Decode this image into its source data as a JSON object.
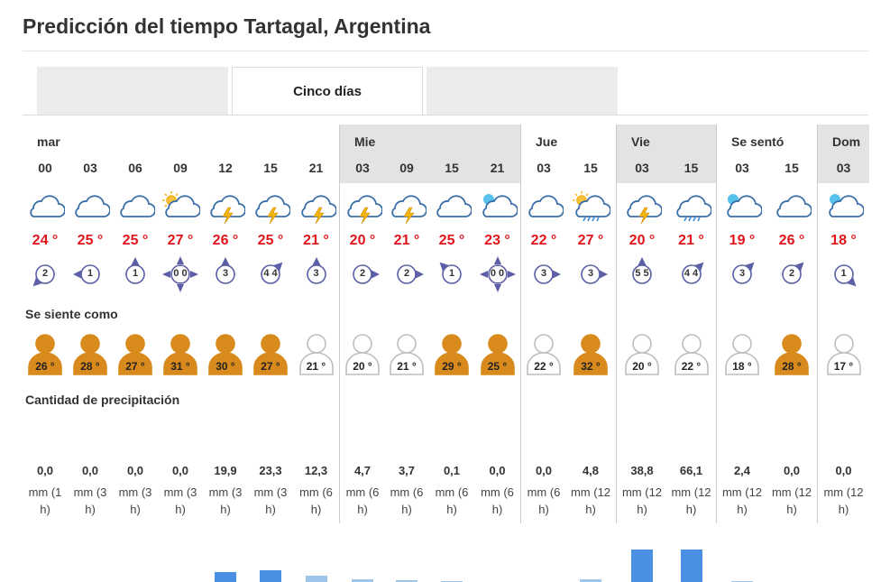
{
  "page": {
    "title": "Predicción del tiempo Tartagal, Argentina"
  },
  "tabs": [
    {
      "label": ""
    },
    {
      "label": "Cinco días"
    },
    {
      "label": ""
    }
  ],
  "sections": {
    "feels_like": "Se siente como",
    "precipitation": "Cantidad de precipitación"
  },
  "colors": {
    "temp": "#e0141b",
    "warm_person": "#d98a1c",
    "bar_heavy": "#4a90e2",
    "bar_light": "#9ec5ea",
    "header_shade": "#e3e3e3"
  },
  "forecast": [
    {
      "day": "mar",
      "hour": "00",
      "icon": "cloud-icon",
      "temp": "24 °",
      "wind": "2",
      "wind_dir": "sw",
      "feel": "26 °",
      "warm": true,
      "precip": 0.0,
      "precip_label": "0,0",
      "unit_l1": "mm (1",
      "unit_l2": "h)"
    },
    {
      "day": "",
      "hour": "03",
      "icon": "cloud-icon",
      "temp": "25 °",
      "wind": "1",
      "wind_dir": "w",
      "feel": "28 °",
      "warm": true,
      "precip": 0.0,
      "precip_label": "0,0",
      "unit_l1": "mm (3",
      "unit_l2": "h)"
    },
    {
      "day": "",
      "hour": "06",
      "icon": "cloud-icon",
      "temp": "25 °",
      "wind": "1",
      "wind_dir": "n",
      "feel": "27 °",
      "warm": true,
      "precip": 0.0,
      "precip_label": "0,0",
      "unit_l1": "mm (3",
      "unit_l2": "h)"
    },
    {
      "day": "",
      "hour": "09",
      "icon": "sun-cloud-icon",
      "temp": "27 °",
      "wind": "0 0",
      "wind_dir": "calm",
      "feel": "31 °",
      "warm": true,
      "precip": 0.0,
      "precip_label": "0,0",
      "unit_l1": "mm (3",
      "unit_l2": "h)"
    },
    {
      "day": "",
      "hour": "12",
      "icon": "thunder-cloud-icon",
      "temp": "26 °",
      "wind": "3",
      "wind_dir": "n",
      "feel": "30 °",
      "warm": true,
      "precip": 19.9,
      "precip_label": "19,9",
      "unit_l1": "mm (3",
      "unit_l2": "h)"
    },
    {
      "day": "",
      "hour": "15",
      "icon": "thunder-cloud-icon",
      "temp": "25 °",
      "wind": "4 4",
      "wind_dir": "ne",
      "feel": "27 °",
      "warm": true,
      "precip": 23.3,
      "precip_label": "23,3",
      "unit_l1": "mm (3",
      "unit_l2": "h)"
    },
    {
      "day": "",
      "hour": "21",
      "icon": "thunder-cloud-icon",
      "temp": "21 °",
      "wind": "3",
      "wind_dir": "n",
      "feel": "21 °",
      "warm": false,
      "precip": 12.3,
      "precip_label": "12,3",
      "unit_l1": "mm (6",
      "unit_l2": "h)"
    },
    {
      "day": "Mie",
      "hour": "03",
      "icon": "thunder-cloud-icon",
      "temp": "20 °",
      "wind": "2",
      "wind_dir": "e",
      "feel": "20 °",
      "warm": false,
      "precip": 4.7,
      "precip_label": "4,7",
      "unit_l1": "mm (6",
      "unit_l2": "h)"
    },
    {
      "day": "",
      "hour": "09",
      "icon": "thunder-cloud-icon",
      "temp": "21 °",
      "wind": "2",
      "wind_dir": "e",
      "feel": "21 °",
      "warm": false,
      "precip": 3.7,
      "precip_label": "3,7",
      "unit_l1": "mm (6",
      "unit_l2": "h)"
    },
    {
      "day": "",
      "hour": "15",
      "icon": "cloud-icon",
      "temp": "25 °",
      "wind": "1",
      "wind_dir": "nw",
      "feel": "29 °",
      "warm": true,
      "precip": 0.1,
      "precip_label": "0,1",
      "unit_l1": "mm (6",
      "unit_l2": "h)"
    },
    {
      "day": "",
      "hour": "21",
      "icon": "moon-cloud-icon",
      "temp": "23 °",
      "wind": "0 0",
      "wind_dir": "calm",
      "feel": "25 °",
      "warm": true,
      "precip": 0.0,
      "precip_label": "0,0",
      "unit_l1": "mm (6",
      "unit_l2": "h)"
    },
    {
      "day": "Jue",
      "hour": "03",
      "icon": "cloud-icon",
      "temp": "22 °",
      "wind": "3",
      "wind_dir": "e",
      "feel": "22 °",
      "warm": false,
      "precip": 0.0,
      "precip_label": "0,0",
      "unit_l1": "mm (6",
      "unit_l2": "h)"
    },
    {
      "day": "",
      "hour": "15",
      "icon": "sun-rain-cloud-icon",
      "temp": "27 °",
      "wind": "3",
      "wind_dir": "e",
      "feel": "32 °",
      "warm": true,
      "precip": 4.8,
      "precip_label": "4,8",
      "unit_l1": "mm (12",
      "unit_l2": "h)"
    },
    {
      "day": "Vie",
      "hour": "03",
      "icon": "thunder-cloud-icon",
      "temp": "20 °",
      "wind": "5 5",
      "wind_dir": "n",
      "feel": "20 °",
      "warm": false,
      "precip": 38.8,
      "precip_label": "38,8",
      "unit_l1": "mm (12",
      "unit_l2": "h)"
    },
    {
      "day": "",
      "hour": "15",
      "icon": "rain-cloud-icon",
      "temp": "21 °",
      "wind": "4 4",
      "wind_dir": "ne",
      "feel": "22 °",
      "warm": false,
      "precip": 66.1,
      "precip_label": "66,1",
      "unit_l1": "mm (12",
      "unit_l2": "h)"
    },
    {
      "day": "Se sentó",
      "hour": "03",
      "icon": "moon-cloud-icon",
      "temp": "19 °",
      "wind": "3",
      "wind_dir": "ne",
      "feel": "18 °",
      "warm": false,
      "precip": 2.4,
      "precip_label": "2,4",
      "unit_l1": "mm (12",
      "unit_l2": "h)"
    },
    {
      "day": "",
      "hour": "15",
      "icon": "cloud-icon",
      "temp": "26 °",
      "wind": "2",
      "wind_dir": "ne",
      "feel": "28 °",
      "warm": true,
      "precip": 0.0,
      "precip_label": "0,0",
      "unit_l1": "mm (12",
      "unit_l2": "h)"
    },
    {
      "day": "Dom",
      "hour": "03",
      "icon": "moon-cloud-icon",
      "temp": "18 °",
      "wind": "1",
      "wind_dir": "se",
      "feel": "17 °",
      "warm": false,
      "precip": 0.0,
      "precip_label": "0,0",
      "unit_l1": "mm (12",
      "unit_l2": "h)"
    }
  ]
}
